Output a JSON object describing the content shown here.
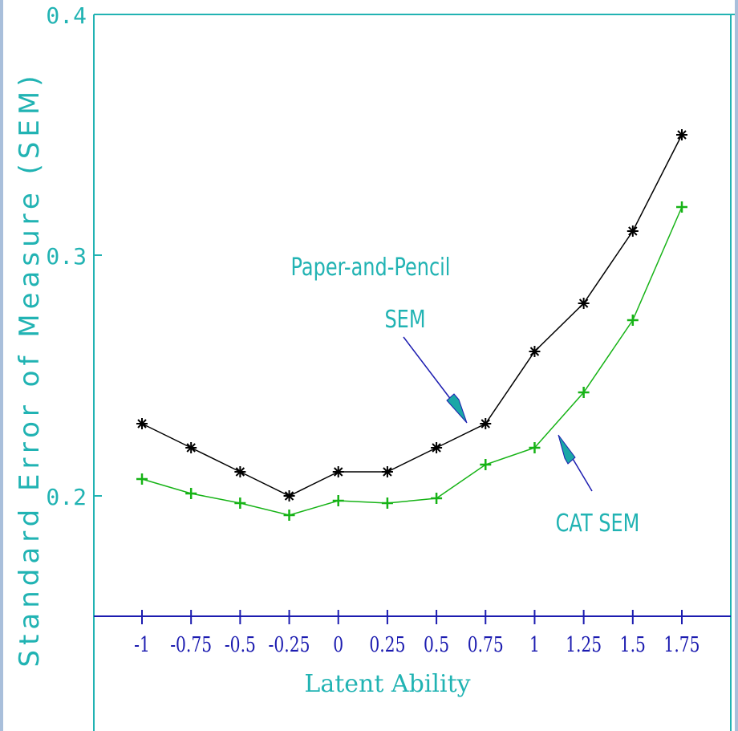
{
  "chart_data": {
    "type": "line",
    "xlabel": "Latent Ability",
    "ylabel": "Standard Error of Measure (SEM)",
    "ylim": [
      0.15,
      0.4
    ],
    "y_ticks": [
      "0.2",
      "0.3",
      "0.4"
    ],
    "y_tick_values": [
      0.2,
      0.3,
      0.4
    ],
    "x": [
      -1,
      -0.75,
      -0.5,
      -0.25,
      0,
      0.25,
      0.5,
      0.75,
      1,
      1.25,
      1.5,
      1.75
    ],
    "x_tick_labels": [
      "-1",
      "-0.75",
      "-0.5",
      "-0.25",
      "0",
      "0.25",
      "0.5",
      "0.75",
      "1",
      "1.25",
      "1.5",
      "1.75"
    ],
    "grid": false,
    "series": [
      {
        "name": "Paper-and-Pencil SEM",
        "marker": "asterisk",
        "color": "#000000",
        "values": [
          0.23,
          0.22,
          0.21,
          0.2,
          0.21,
          0.21,
          0.22,
          0.23,
          0.26,
          0.28,
          0.31,
          0.35
        ]
      },
      {
        "name": "CAT SEM",
        "marker": "plus",
        "color": "#16b316",
        "values": [
          0.207,
          0.201,
          0.197,
          0.192,
          0.198,
          0.197,
          0.199,
          0.213,
          0.22,
          0.243,
          0.273,
          0.32
        ]
      }
    ],
    "annotations": [
      {
        "lines": [
          "Paper-and-Pencil",
          "SEM"
        ],
        "points_to_series": 0
      },
      {
        "lines": [
          "CAT  SEM"
        ],
        "points_to_series": 1
      }
    ],
    "colors": {
      "background": "#a9bfdb",
      "plot_background": "#ffffff",
      "frame": "#21b3b3",
      "axis": "#1c1cb0",
      "label_teal": "#21b3b3",
      "arrow_line": "#1c1cb0",
      "arrow_head": "#1aa7a7"
    }
  }
}
